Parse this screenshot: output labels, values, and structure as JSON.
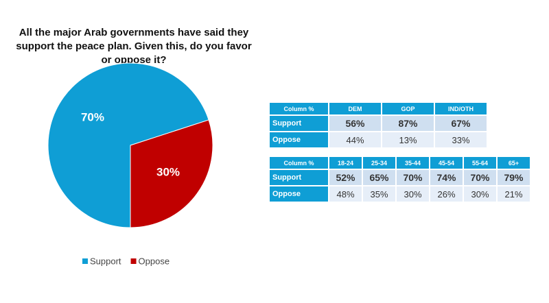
{
  "chart_data": {
    "type": "pie",
    "title": "All the major Arab governments have said they support the peace plan. Given this, do you favor or oppose it?",
    "categories": [
      "Support",
      "Oppose"
    ],
    "values": [
      70,
      30
    ],
    "value_labels": [
      "70%",
      "30%"
    ],
    "colors": [
      "#0f9ed5",
      "#c00000"
    ]
  },
  "tables": [
    {
      "header": [
        "Column %",
        "DEM",
        "GOP",
        "IND/OTH"
      ],
      "rows": [
        [
          "Support",
          "56%",
          "87%",
          "67%"
        ],
        [
          "Oppose",
          "44%",
          "13%",
          "33%"
        ]
      ]
    },
    {
      "header": [
        "Column %",
        "18-24",
        "25-34",
        "35-44",
        "45-54",
        "55-64",
        "65+"
      ],
      "rows": [
        [
          "Support",
          "52%",
          "65%",
          "70%",
          "74%",
          "70%",
          "79%"
        ],
        [
          "Oppose",
          "48%",
          "35%",
          "30%",
          "26%",
          "30%",
          "21%"
        ]
      ]
    }
  ]
}
